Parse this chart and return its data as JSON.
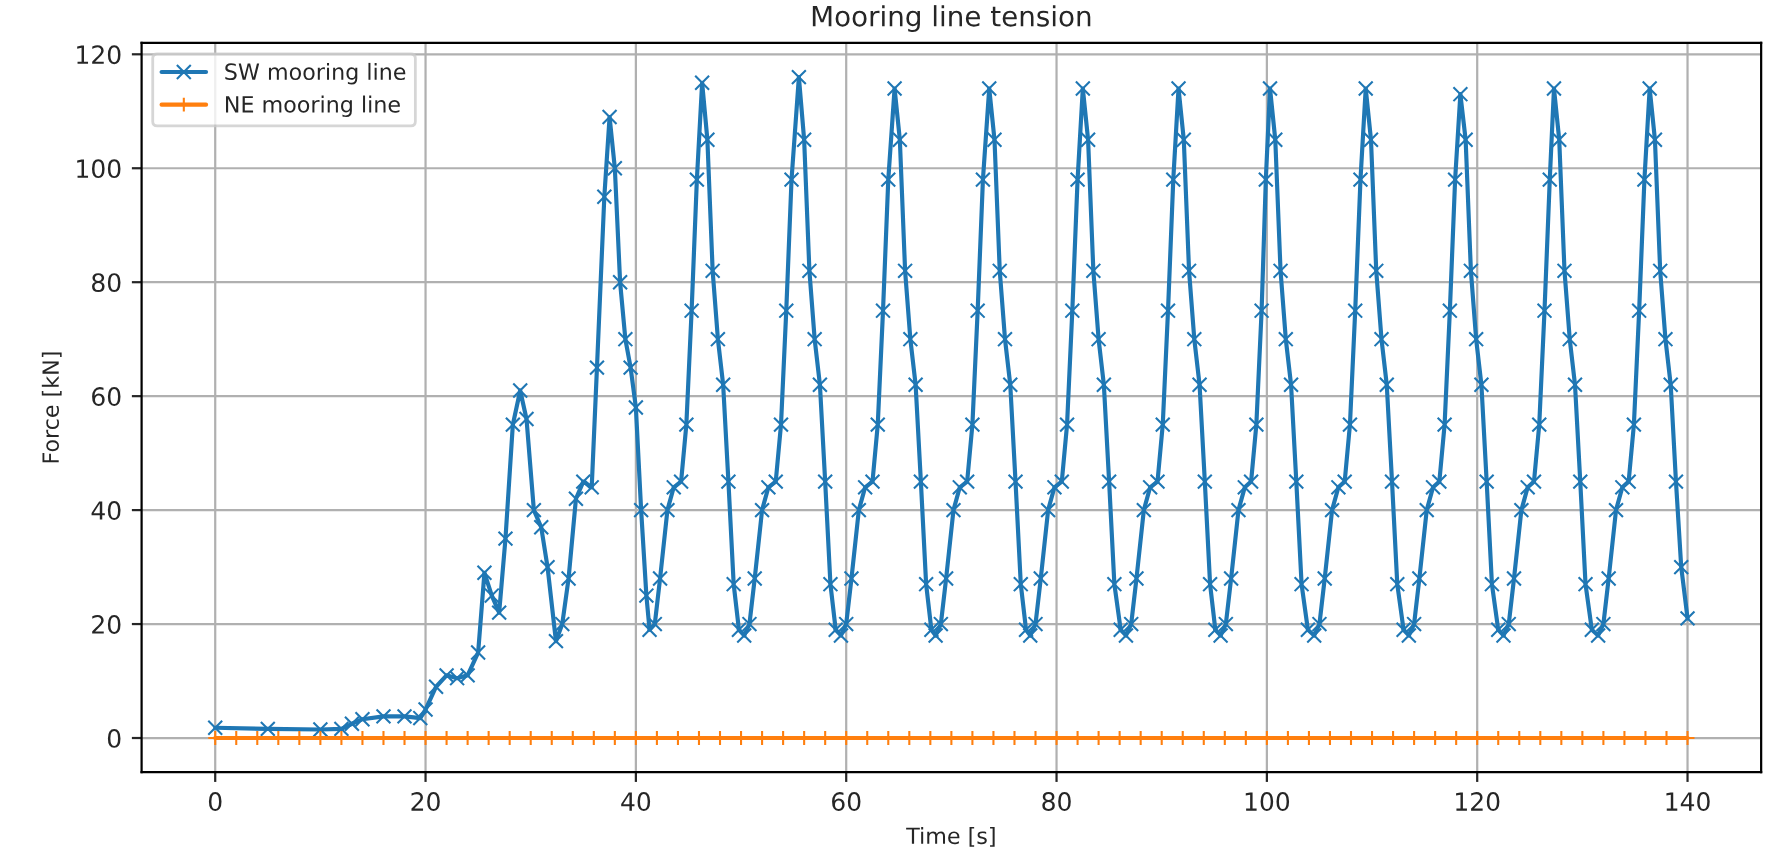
{
  "chart_data": {
    "type": "line",
    "title": "Mooring line tension",
    "xlabel": "Time [s]",
    "ylabel": "Force [kN]",
    "xlim": [
      -7,
      147
    ],
    "ylim": [
      -6,
      122
    ],
    "xticks": [
      0,
      20,
      40,
      60,
      80,
      100,
      120,
      140
    ],
    "yticks": [
      0,
      20,
      40,
      60,
      80,
      100,
      120
    ],
    "grid": true,
    "legend": "top left",
    "line_style": "solid",
    "series": [
      {
        "name": "SW mooring line",
        "color": "#1f77b4",
        "marker": "cross",
        "x": [
          0,
          5,
          10,
          12,
          13,
          14,
          16,
          18,
          19.5,
          20,
          21,
          22,
          23,
          24,
          25,
          25.6,
          26.3,
          27,
          27.6,
          28.3,
          29,
          29.6,
          30.3,
          31,
          31.6,
          32.4,
          33,
          33.6,
          34.3,
          35,
          35.8,
          36.3,
          37,
          37.5,
          38,
          38.5,
          39,
          39.5,
          40,
          40.5,
          41,
          41.3,
          41.8,
          42.3,
          43.0,
          43.6,
          44.3,
          44.8,
          45.3,
          45.8,
          46.3,
          46.8,
          47.3,
          47.8,
          48.3,
          48.8,
          49.3,
          49.8,
          50.3,
          50.8,
          51.3,
          52.0,
          52.6,
          53.3,
          53.8,
          54.3,
          54.8,
          55.5,
          56.0,
          56.5,
          57.0,
          57.5,
          58.0,
          58.5,
          59.0,
          59.5,
          60.0,
          60.5,
          61.2,
          61.8,
          62.5,
          63.0,
          63.5,
          64.0,
          64.6,
          65.1,
          65.6,
          66.1,
          66.6,
          67.1,
          67.6,
          68.1,
          68.5,
          69.0,
          69.5,
          70.2,
          70.8,
          71.5,
          72.0,
          72.5,
          73.0,
          73.6,
          74.1,
          74.6,
          75.1,
          75.6,
          76.1,
          76.6,
          77.1,
          77.5,
          78.0,
          78.5,
          79.2,
          79.8,
          80.5,
          81.0,
          81.5,
          82.0,
          82.5,
          83.0,
          83.5,
          84.0,
          84.5,
          85.0,
          85.5,
          86.1,
          86.6,
          87.1,
          87.6,
          88.3,
          88.9,
          89.6,
          90.1,
          90.6,
          91.1,
          91.6,
          92.1,
          92.6,
          93.1,
          93.6,
          94.1,
          94.6,
          95.1,
          95.6,
          96.1,
          96.6,
          97.3,
          97.9,
          98.5,
          99.0,
          99.5,
          99.9,
          100.3,
          100.8,
          101.3,
          101.8,
          102.3,
          102.8,
          103.3,
          103.9,
          104.5,
          105.0,
          105.5,
          106.2,
          106.8,
          107.4,
          107.9,
          108.4,
          108.9,
          109.4,
          109.9,
          110.4,
          110.9,
          111.4,
          111.9,
          112.4,
          113.0,
          113.5,
          114.0,
          114.5,
          115.2,
          115.8,
          116.4,
          116.9,
          117.4,
          117.9,
          118.4,
          118.9,
          119.4,
          119.9,
          120.4,
          120.9,
          121.4,
          122.0,
          122.5,
          123.0,
          123.5,
          124.2,
          124.8,
          125.4,
          125.9,
          126.4,
          126.9,
          127.3,
          127.8,
          128.3,
          128.8,
          129.3,
          129.8,
          130.3,
          130.9,
          131.5,
          132.0,
          132.5,
          133.2,
          133.8,
          134.4,
          134.9,
          135.4,
          135.9,
          136.4,
          136.9,
          137.4,
          137.9,
          138.4,
          138.9,
          139.4,
          140.0
        ],
        "values": [
          1.8,
          1.6,
          1.5,
          1.6,
          2.5,
          3.3,
          3.8,
          3.8,
          3.5,
          5,
          9,
          11,
          10.5,
          11,
          15,
          29,
          25,
          22,
          35,
          55,
          61,
          56,
          40,
          37,
          30,
          17,
          20,
          28,
          42,
          45,
          44,
          65,
          95,
          109,
          100,
          80,
          70,
          65,
          58,
          40,
          25,
          19,
          20,
          28,
          40,
          44,
          45,
          55,
          75,
          98,
          115,
          105,
          82,
          70,
          62,
          45,
          27,
          19,
          18,
          20,
          28,
          40,
          44,
          45,
          55,
          75,
          98,
          116,
          105,
          82,
          70,
          62,
          45,
          27,
          19,
          18,
          20,
          28,
          40,
          44,
          45,
          55,
          75,
          98,
          114,
          105,
          82,
          70,
          62,
          45,
          27,
          19,
          18,
          20,
          28,
          40,
          44,
          45,
          55,
          75,
          98,
          114,
          105,
          82,
          70,
          62,
          45,
          27,
          19,
          18,
          20,
          28,
          40,
          44,
          45,
          55,
          75,
          98,
          114,
          105,
          82,
          70,
          62,
          45,
          27,
          19,
          18,
          20,
          28,
          40,
          44,
          45,
          55,
          75,
          98,
          114,
          105,
          82,
          70,
          62,
          45,
          27,
          19,
          18,
          20,
          28,
          40,
          44,
          45,
          55,
          75,
          98,
          114,
          105,
          82,
          70,
          62,
          45,
          27,
          19,
          18,
          20,
          28,
          40,
          44,
          45,
          55,
          75,
          98,
          114,
          105,
          82,
          70,
          62,
          45,
          27,
          19,
          18,
          20,
          28,
          40,
          44,
          45,
          55,
          75,
          98,
          113,
          105,
          82,
          70,
          62,
          45,
          27,
          19,
          18,
          20,
          28,
          40,
          44,
          45,
          55,
          75,
          98,
          114,
          105,
          82,
          70,
          62,
          45,
          27,
          19,
          18,
          20,
          28,
          40,
          44,
          45,
          55,
          75,
          98,
          114,
          105,
          82,
          70,
          62,
          45,
          30,
          21
        ]
      },
      {
        "name": "NE mooring line",
        "color": "#ff7f0e",
        "marker": "plus",
        "x": [
          0,
          2,
          4,
          6,
          8,
          10,
          12,
          14,
          16,
          18,
          20,
          22,
          24,
          26,
          28,
          30,
          32,
          34,
          36,
          38,
          40,
          42,
          44,
          46,
          48,
          50,
          52,
          54,
          56,
          58,
          60,
          62,
          64,
          66,
          68,
          70,
          72,
          74,
          76,
          78,
          80,
          82,
          84,
          86,
          88,
          90,
          92,
          94,
          96,
          98,
          100,
          102,
          104,
          106,
          108,
          110,
          112,
          114,
          116,
          118,
          120,
          122,
          124,
          126,
          128,
          130,
          132,
          134,
          136,
          138,
          140
        ],
        "values": [
          0,
          0,
          0,
          0,
          0,
          0,
          0,
          0,
          0,
          0,
          0,
          0,
          0,
          0,
          0,
          0,
          0,
          0,
          0,
          0,
          0,
          0,
          0,
          0,
          0,
          0,
          0,
          0,
          0,
          0,
          0,
          0,
          0,
          0,
          0,
          0,
          0,
          0,
          0,
          0,
          0,
          0,
          0,
          0,
          0,
          0,
          0,
          0,
          0,
          0,
          0,
          0,
          0,
          0,
          0,
          0,
          0,
          0,
          0,
          0,
          0,
          0,
          0,
          0,
          0,
          0,
          0,
          0,
          0,
          0,
          0
        ]
      }
    ]
  }
}
